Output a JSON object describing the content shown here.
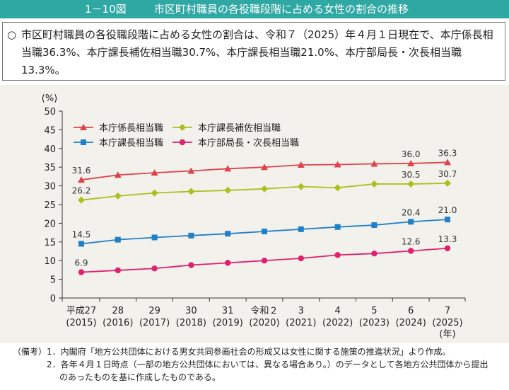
{
  "header": {
    "figure_number": "1－10図",
    "title": "市区町村職員の各役職段階に占める女性の割合の推移"
  },
  "summary": {
    "bullet": "○",
    "text": "市区町村職員の各役職段階に占める女性の割合は、令和７（2025）年４月１日現在で、本庁係長相当職36.3%、本庁課長補佐相当職30.7%、本庁課長相当職21.0%、本庁部局長・次長相当職13.3%。"
  },
  "chart_data": {
    "type": "line",
    "y_unit": "(%)",
    "x_unit": "(年)",
    "ylim": [
      0,
      50
    ],
    "yticks": [
      0,
      5,
      10,
      15,
      20,
      25,
      30,
      35,
      40,
      45,
      50
    ],
    "grid": false,
    "legend_position": "top-left",
    "categories": [
      {
        "era": "平成27",
        "year": "(2015)"
      },
      {
        "era": "28",
        "year": "(2016)"
      },
      {
        "era": "29",
        "year": "(2017)"
      },
      {
        "era": "30",
        "year": "(2018)"
      },
      {
        "era": "31",
        "year": "(2019)"
      },
      {
        "era": "令和２",
        "year": "(2020)"
      },
      {
        "era": "3",
        "year": "(2021)"
      },
      {
        "era": "4",
        "year": "(2022)"
      },
      {
        "era": "5",
        "year": "(2023)"
      },
      {
        "era": "6",
        "year": "(2024)"
      },
      {
        "era": "7",
        "year": "(2025)"
      }
    ],
    "series": [
      {
        "name": "本庁係長相当職",
        "color": "#e0424a",
        "marker": "triangle",
        "values": [
          31.6,
          32.9,
          33.5,
          34.0,
          34.6,
          35.0,
          35.6,
          35.7,
          35.9,
          36.0,
          36.3
        ],
        "labels": [
          {
            "index": 0,
            "text": "31.6"
          },
          {
            "index": 9,
            "text": "36.0"
          },
          {
            "index": 10,
            "text": "36.3"
          }
        ]
      },
      {
        "name": "本庁課長補佐相当職",
        "color": "#a6c21c",
        "marker": "diamond",
        "values": [
          26.2,
          27.3,
          28.1,
          28.5,
          28.8,
          29.2,
          29.8,
          29.5,
          30.5,
          30.5,
          30.7
        ],
        "labels": [
          {
            "index": 0,
            "text": "26.2"
          },
          {
            "index": 9,
            "text": "30.5"
          },
          {
            "index": 10,
            "text": "30.7"
          }
        ]
      },
      {
        "name": "本庁課長相当職",
        "color": "#1f7fc8",
        "marker": "square",
        "values": [
          14.5,
          15.6,
          16.2,
          16.7,
          17.2,
          17.8,
          18.4,
          19.0,
          19.5,
          20.4,
          21.0
        ],
        "labels": [
          {
            "index": 0,
            "text": "14.5"
          },
          {
            "index": 9,
            "text": "20.4"
          },
          {
            "index": 10,
            "text": "21.0"
          }
        ]
      },
      {
        "name": "本庁部局長・次長相当職",
        "color": "#e0206e",
        "marker": "circle",
        "values": [
          6.9,
          7.4,
          7.9,
          8.8,
          9.4,
          10.0,
          10.6,
          11.5,
          11.9,
          12.6,
          13.3
        ],
        "labels": [
          {
            "index": 0,
            "text": "6.9"
          },
          {
            "index": 9,
            "text": "12.6"
          },
          {
            "index": 10,
            "text": "13.3"
          }
        ]
      }
    ]
  },
  "notes": {
    "lead": "（備考）",
    "note1": "1．内閣府「地方公共団体における男女共同参画社会の形成又は女性に関する施策の推進状況」より作成。",
    "note2": "2．各年４月１日時点（一部の地方公共団体においては、異なる場合あり。）のデータとして各地方公共団体から提出",
    "note2_cont": "のあったものを基に作成したものである。"
  }
}
